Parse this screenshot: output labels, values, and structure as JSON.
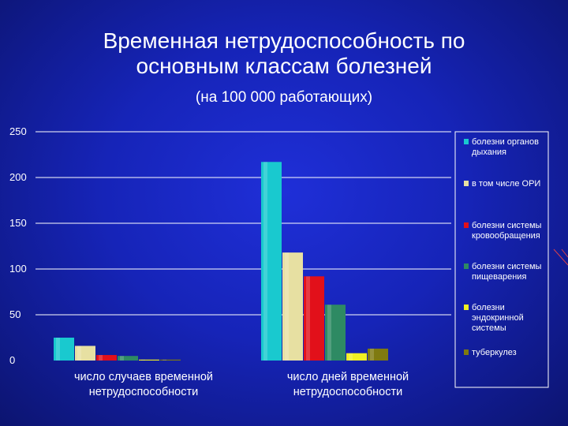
{
  "slide": {
    "title_line1": "Временная нетрудоспособность по",
    "title_line2": "основным классам болезней",
    "subtitle": "(на 100 000 работающих)"
  },
  "chart_data": {
    "type": "bar",
    "categories": [
      [
        "число случаев временной",
        "нетрудоспособности"
      ],
      [
        "число дней временной",
        "нетрудоспособности"
      ]
    ],
    "series": [
      {
        "name": "болезни органов дыхания",
        "legend_lines": [
          "болезни органов",
          "дыхания"
        ],
        "color": "#19c9cf",
        "values": [
          25,
          217
        ]
      },
      {
        "name": "в том числе ОРИ",
        "legend_lines": [
          "в том числе ОРИ"
        ],
        "color": "#e7e0a2",
        "values": [
          16,
          118
        ]
      },
      {
        "name": "болезни системы кровообращения",
        "legend_lines": [
          "болезни системы",
          "кровообращения"
        ],
        "color": "#e2101a",
        "values": [
          6,
          92
        ]
      },
      {
        "name": "болезни системы пищеварения",
        "legend_lines": [
          "болезни системы",
          "пищеварения"
        ],
        "color": "#2e8a63",
        "values": [
          5,
          61
        ]
      },
      {
        "name": "болезни эндокринной системы",
        "legend_lines": [
          "болезни",
          "эндокринной",
          "системы"
        ],
        "color": "#f0ef22",
        "values": [
          1,
          8
        ]
      },
      {
        "name": "туберкулез",
        "legend_lines": [
          "туберкулез"
        ],
        "color": "#7f7a10",
        "values": [
          1,
          13
        ]
      }
    ],
    "yticks": [
      0,
      50,
      100,
      150,
      200,
      250
    ],
    "ylim": [
      0,
      250
    ],
    "grid": true,
    "legend": "right"
  }
}
